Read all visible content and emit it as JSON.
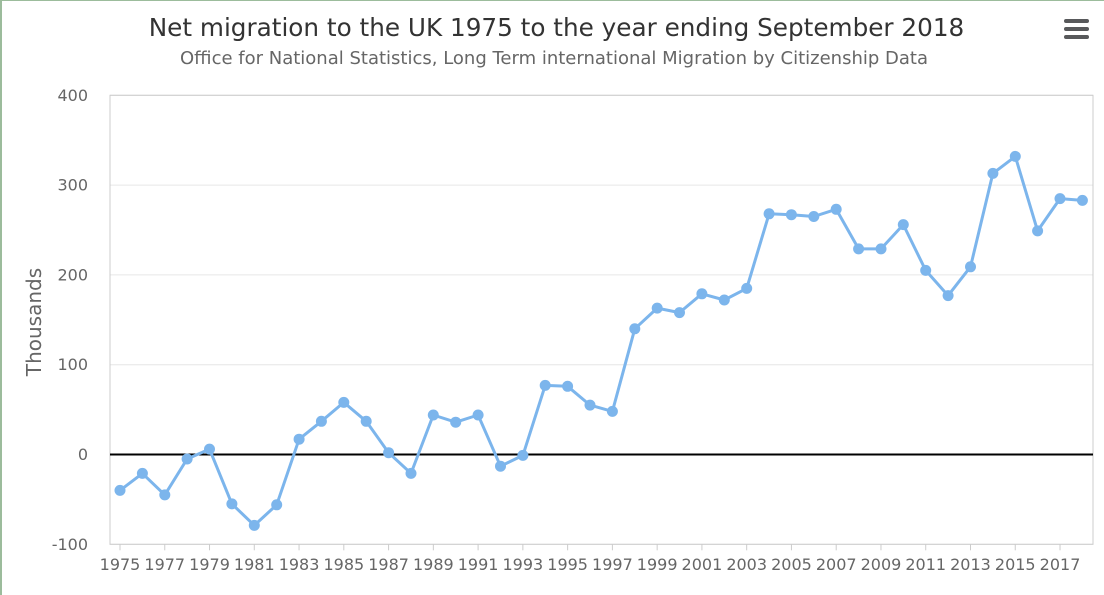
{
  "page": {
    "background": "#ffffff",
    "border_top_color": "#9cbc9c",
    "border_left_color": "#9cbc9c"
  },
  "chart": {
    "menu_icon": "hamburger-icon",
    "colors": {
      "series": "#7cb5ec",
      "title_text": "#333333",
      "subtitle_text": "#666666",
      "axis_label_text": "#666666",
      "grid": "#e6e6e6",
      "plot_border": "#cccccc",
      "tick": "#cccccc",
      "zero_line": "#000000",
      "menu_icon": "#58595b"
    }
  },
  "chart_data": {
    "type": "line",
    "title": "Net migration to the UK 1975 to the year ending September 2018",
    "subtitle": "Office for National Statistics, Long Term international Migration by Citizenship Data",
    "ylabel": "Thousands",
    "xlabel": "",
    "x": [
      1975,
      1976,
      1977,
      1978,
      1979,
      1980,
      1981,
      1982,
      1983,
      1984,
      1985,
      1986,
      1987,
      1988,
      1989,
      1990,
      1991,
      1992,
      1993,
      1994,
      1995,
      1996,
      1997,
      1998,
      1999,
      2000,
      2001,
      2002,
      2003,
      2004,
      2005,
      2006,
      2007,
      2008,
      2009,
      2010,
      2011,
      2012,
      2013,
      2014,
      2015,
      2016,
      2017,
      2018
    ],
    "values": [
      -40,
      -21,
      -45,
      -5,
      6,
      -55,
      -79,
      -56,
      17,
      37,
      58,
      37,
      2,
      -21,
      44,
      36,
      44,
      -13,
      -1,
      77,
      76,
      55,
      48,
      140,
      163,
      158,
      179,
      172,
      185,
      268,
      267,
      265,
      273,
      229,
      229,
      256,
      205,
      177,
      209,
      313,
      332,
      249,
      285,
      283
    ],
    "ylim": [
      -100,
      400
    ],
    "yticks": [
      -100,
      0,
      100,
      200,
      300,
      400
    ],
    "xtick_years": [
      1975,
      1977,
      1979,
      1981,
      1983,
      1985,
      1987,
      1989,
      1991,
      1993,
      1995,
      1997,
      1999,
      2001,
      2003,
      2005,
      2007,
      2009,
      2011,
      2013,
      2015,
      2017
    ],
    "grid": "horizontal",
    "zero_plotline": true,
    "legend": false,
    "marker": "circle"
  }
}
